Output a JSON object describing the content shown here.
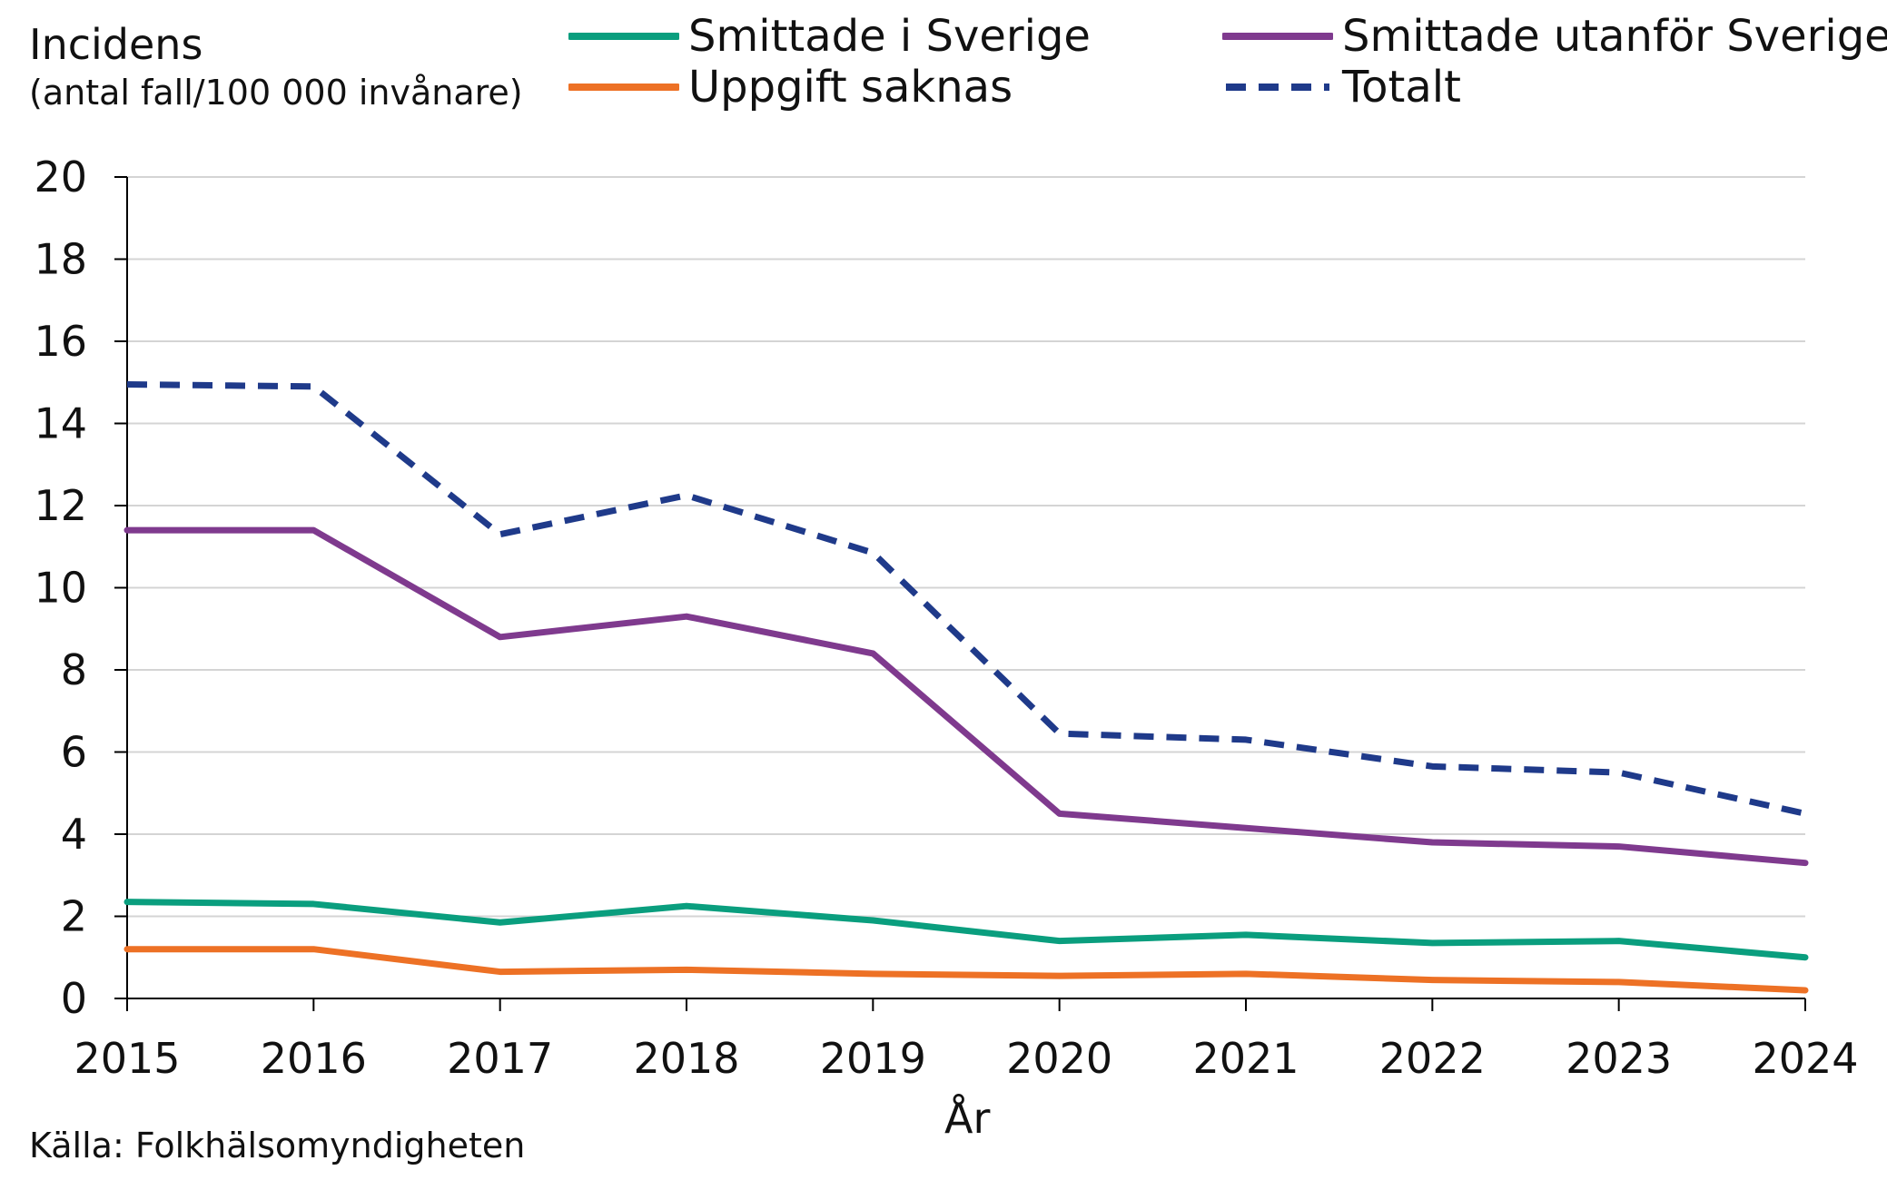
{
  "chart_data": {
    "type": "line",
    "title": "",
    "ylabel": "Incidens",
    "ylabel_sub": "(antal fall/100 000 invånare)",
    "xlabel": "År",
    "source": "Källa: Folkhälsomyndigheten",
    "x": [
      2015,
      2016,
      2017,
      2018,
      2019,
      2020,
      2021,
      2022,
      2023,
      2024
    ],
    "ylim": [
      0,
      20
    ],
    "yticks": [
      0,
      2,
      4,
      6,
      8,
      10,
      12,
      14,
      16,
      18,
      20
    ],
    "grid": true,
    "legend_position": "top",
    "series": [
      {
        "name": "Smittade i Sverige",
        "color": "#0a9e7e",
        "style": "solid",
        "values": [
          2.35,
          2.3,
          1.85,
          2.25,
          1.9,
          1.4,
          1.55,
          1.35,
          1.4,
          1.0
        ]
      },
      {
        "name": "Smittade utanför Sverige",
        "color": "#7f3a8e",
        "style": "solid",
        "values": [
          11.4,
          11.4,
          8.8,
          9.3,
          8.4,
          4.5,
          4.15,
          3.8,
          3.7,
          3.3
        ]
      },
      {
        "name": "Uppgift saknas",
        "color": "#ed7125",
        "style": "solid",
        "values": [
          1.2,
          1.2,
          0.65,
          0.7,
          0.6,
          0.55,
          0.6,
          0.45,
          0.4,
          0.2
        ]
      },
      {
        "name": "Totalt",
        "color": "#1f3a8a",
        "style": "dashed",
        "values": [
          14.95,
          14.9,
          11.3,
          12.25,
          10.85,
          6.45,
          6.3,
          5.65,
          5.5,
          4.5
        ]
      }
    ]
  }
}
